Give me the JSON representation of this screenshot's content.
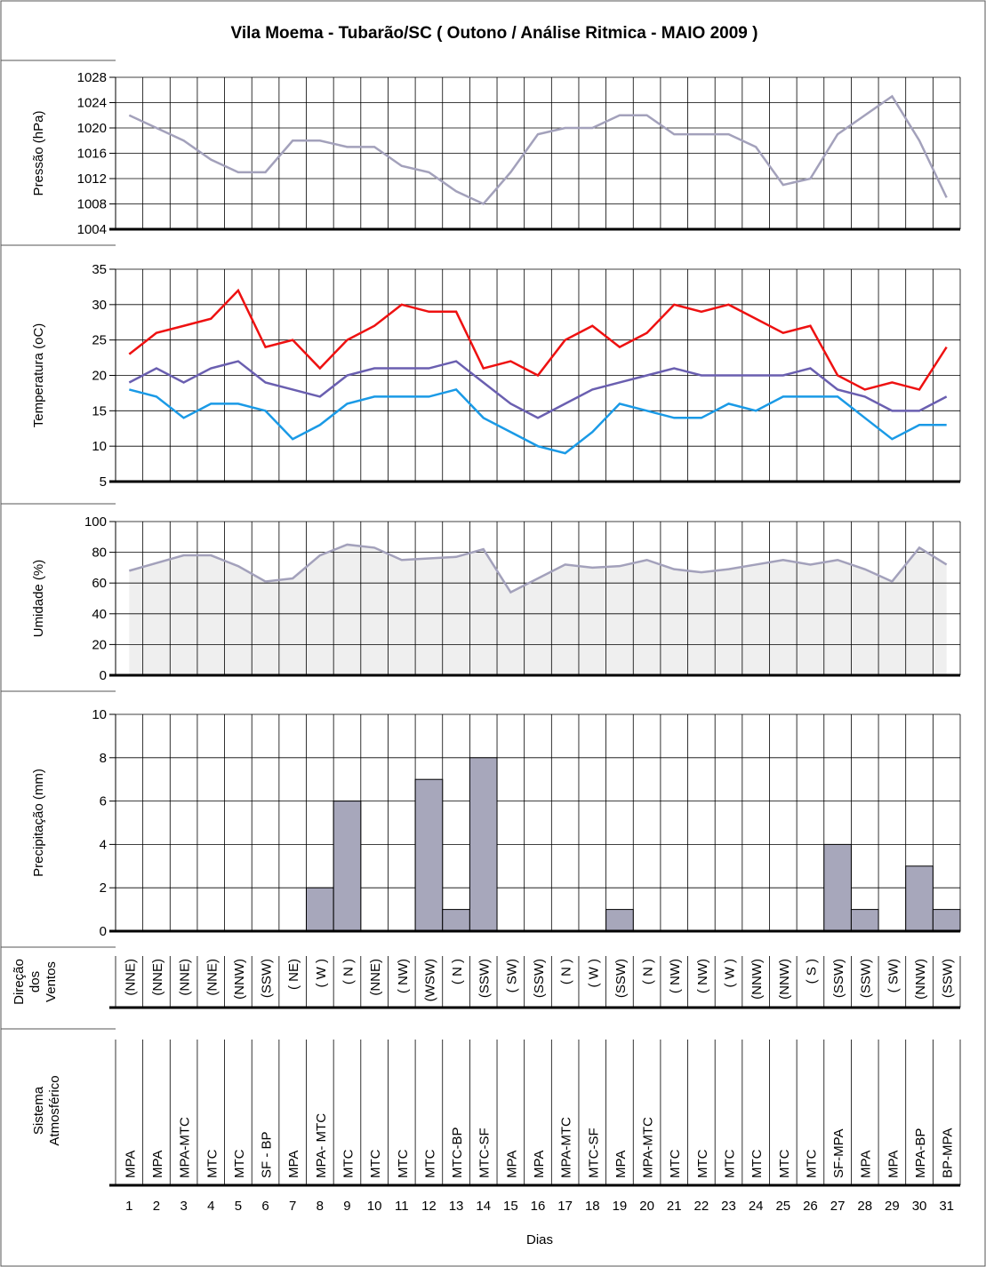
{
  "title": "Vila Moema - Tubarão/SC  ( Outono / Análise Ritmica - MAIO 2009 )",
  "x_label": "Dias",
  "days": [
    "1",
    "2",
    "3",
    "4",
    "5",
    "6",
    "7",
    "8",
    "9",
    "10",
    "11",
    "12",
    "13",
    "14",
    "15",
    "16",
    "17",
    "18",
    "19",
    "20",
    "21",
    "22",
    "23",
    "24",
    "25",
    "26",
    "27",
    "28",
    "29",
    "30",
    "31"
  ],
  "colors": {
    "pressure": "#a3a1bb",
    "temp_max": "#ee1111",
    "temp_mean": "#6a5fb0",
    "temp_min": "#1a9ae6",
    "humidity_line": "#a3a1bb",
    "humidity_fill": "#efefef",
    "precip_bar": "#a7a7bb"
  },
  "chart_data": [
    {
      "type": "line",
      "ylabel": "Pressão (hPa)",
      "ylim": [
        1004,
        1028
      ],
      "yticks": [
        1004,
        1008,
        1012,
        1016,
        1020,
        1024,
        1028
      ],
      "grid": true,
      "series": [
        {
          "key": "pressure",
          "values": [
            1022,
            1020,
            1018,
            1015,
            1013,
            1013,
            1018,
            1018,
            1017,
            1017,
            1014,
            1013,
            1010,
            1008,
            1013,
            1019,
            1020,
            1020,
            1022,
            1022,
            1019,
            1019,
            1019,
            1017,
            1011,
            1012,
            1019,
            1022,
            1025,
            1018,
            1009
          ]
        }
      ]
    },
    {
      "type": "line",
      "ylabel": "Temperatura (oC)",
      "ylim": [
        5,
        35
      ],
      "yticks": [
        5,
        10,
        15,
        20,
        25,
        30,
        35
      ],
      "grid": true,
      "series": [
        {
          "key": "temp_max",
          "values": [
            23,
            26,
            27,
            28,
            32,
            24,
            25,
            21,
            25,
            27,
            30,
            29,
            29,
            21,
            22,
            20,
            25,
            27,
            24,
            26,
            30,
            29,
            30,
            28,
            26,
            27,
            20,
            18,
            19,
            18,
            24
          ]
        },
        {
          "key": "temp_mean",
          "values": [
            19,
            21,
            19,
            21,
            22,
            19,
            18,
            17,
            20,
            21,
            21,
            21,
            22,
            19,
            16,
            14,
            16,
            18,
            19,
            20,
            21,
            20,
            20,
            20,
            20,
            21,
            18,
            17,
            15,
            15,
            17
          ]
        },
        {
          "key": "temp_min",
          "values": [
            18,
            17,
            14,
            16,
            16,
            15,
            11,
            13,
            16,
            17,
            17,
            17,
            18,
            14,
            12,
            10,
            9,
            12,
            16,
            15,
            14,
            14,
            16,
            15,
            17,
            17,
            17,
            14,
            11,
            13,
            13
          ]
        }
      ]
    },
    {
      "type": "area",
      "ylabel": "Umidade (%)",
      "ylim": [
        0,
        100
      ],
      "yticks": [
        0,
        20,
        40,
        60,
        80,
        100
      ],
      "grid": true,
      "series": [
        {
          "key": "humidity",
          "values": [
            68,
            73,
            78,
            78,
            71,
            61,
            63,
            78,
            85,
            83,
            75,
            76,
            77,
            82,
            54,
            63,
            72,
            70,
            71,
            75,
            69,
            67,
            69,
            72,
            75,
            72,
            75,
            69,
            61,
            83,
            72
          ]
        }
      ]
    },
    {
      "type": "bar",
      "ylabel": "Precipitação (mm)",
      "ylim": [
        0,
        10
      ],
      "yticks": [
        0,
        2,
        4,
        6,
        8,
        10
      ],
      "grid": true,
      "series": [
        {
          "key": "precip",
          "values": [
            0,
            0,
            0,
            0,
            0,
            0,
            0,
            2,
            6,
            0,
            0,
            7,
            1,
            8,
            0,
            0,
            0,
            0,
            1,
            0,
            0,
            0,
            0,
            0,
            0,
            0,
            4,
            1,
            0,
            3,
            1
          ]
        }
      ]
    },
    {
      "type": "table",
      "ylabel": [
        "Direção",
        "dos",
        "Ventos"
      ],
      "values": [
        "(NNE)",
        "(NNE)",
        "(NNE)",
        "(NNE)",
        "(NNW)",
        "(SSW)",
        "( NE)",
        "( W )",
        "( N )",
        "(NNE)",
        "( NW)",
        "(WSW)",
        "( N )",
        "(SSW)",
        "( SW)",
        "(SSW)",
        "( N )",
        "( W )",
        "(SSW)",
        "( N )",
        "( NW)",
        "( NW)",
        "( W )",
        "(NNW)",
        "(NNW)",
        "( S )",
        "(SSW)",
        "(SSW)",
        "( SW)",
        "(NNW)",
        "(SSW)"
      ]
    },
    {
      "type": "table",
      "ylabel": [
        "Sistema",
        "Atmosférico"
      ],
      "values": [
        "MPA",
        "MPA",
        "MPA-MTC",
        "MTC",
        "MTC",
        "SF - BP",
        "MPA",
        "MPA- MTC",
        "MTC",
        "MTC",
        "MTC",
        "MTC",
        "MTC-BP",
        "MTC-SF",
        "MPA",
        "MPA",
        "MPA-MTC",
        "MTC-SF",
        "MPA",
        "MPA-MTC",
        "MTC",
        "MTC",
        "MTC",
        "MTC",
        "MTC",
        "MTC",
        "SF-MPA",
        "MPA",
        "MPA",
        "MPA-BP",
        "BP-MPA"
      ]
    }
  ]
}
